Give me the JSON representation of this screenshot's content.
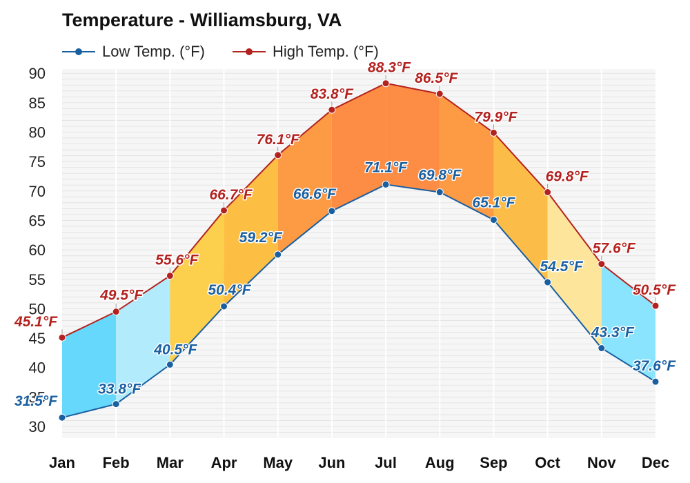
{
  "header": {
    "title": "Temperature - Williamsburg, VA"
  },
  "legend": {
    "items": [
      {
        "label": "Low Temp. (°F)",
        "color": "#1a5fa0"
      },
      {
        "label": "High Temp. (°F)",
        "color": "#b3221f"
      }
    ]
  },
  "chart_data": {
    "type": "line",
    "title": "Temperature - Williamsburg, VA",
    "xlabel": "",
    "ylabel": "",
    "ylim": [
      30,
      90
    ],
    "yticks": [
      30,
      35,
      40,
      45,
      50,
      55,
      60,
      65,
      70,
      75,
      80,
      85,
      90
    ],
    "grid": true,
    "legend_position": "top-left",
    "categories": [
      "Jan",
      "Feb",
      "Mar",
      "Apr",
      "May",
      "Jun",
      "Jul",
      "Aug",
      "Sep",
      "Oct",
      "Nov",
      "Dec"
    ],
    "series": [
      {
        "name": "Low Temp. (°F)",
        "values": [
          31.5,
          33.8,
          40.5,
          50.4,
          59.2,
          66.6,
          71.1,
          69.8,
          65.1,
          54.5,
          43.3,
          37.6
        ],
        "labels": [
          "31.5°F",
          "33.8°F",
          "40.5°F",
          "50.4°F",
          "59.2°F",
          "66.6°F",
          "71.1°F",
          "69.8°F",
          "65.1°F",
          "54.5°F",
          "43.3°F",
          "37.6°F"
        ],
        "color": "#1a5fa0"
      },
      {
        "name": "High Temp. (°F)",
        "values": [
          45.1,
          49.5,
          55.6,
          66.7,
          76.1,
          83.8,
          88.3,
          86.5,
          79.9,
          69.8,
          57.6,
          50.5
        ],
        "labels": [
          "45.1°F",
          "49.5°F",
          "55.6°F",
          "66.7°F",
          "76.1°F",
          "83.8°F",
          "88.3°F",
          "86.5°F",
          "79.9°F",
          "69.8°F",
          "57.6°F",
          "50.5°F"
        ],
        "color": "#b3221f"
      }
    ],
    "band_colors": [
      "#66d8fb",
      "#b2ecfc",
      "#fccf4d",
      "#fcbf44",
      "#fd9a44",
      "#fd8c44",
      "#fd8c44",
      "#fd9a44",
      "#fcbd48",
      "#fde69c",
      "#8ae4fd",
      "#8ae4fd"
    ]
  }
}
